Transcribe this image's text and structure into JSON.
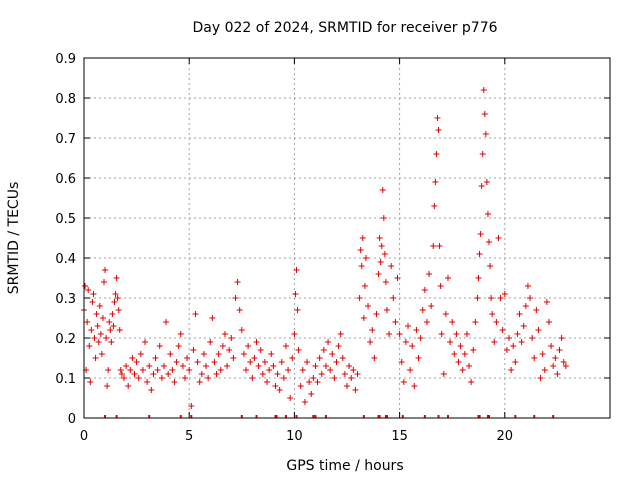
{
  "chart_data": {
    "type": "scatter",
    "title": "Day 022 of 2024, SRMTID for receiver p776",
    "xlabel": "GPS time / hours",
    "ylabel": "SRMTID / TECUs",
    "xlim": [
      0,
      25
    ],
    "ylim": [
      0,
      0.9
    ],
    "xticks": [
      0,
      5,
      10,
      15,
      20
    ],
    "xtick_labels": [
      "0",
      "5",
      "10",
      "15",
      "20"
    ],
    "yticks": [
      0,
      0.1,
      0.2,
      0.3,
      0.4,
      0.5,
      0.6,
      0.7,
      0.8,
      0.9
    ],
    "ytick_labels": [
      "0",
      "0.1",
      "0.2",
      "0.3",
      "0.4",
      "0.5",
      "0.6",
      "0.7",
      "0.8",
      "0.9"
    ],
    "grid": true,
    "marker": "+",
    "color": "#e00000",
    "series": [
      {
        "name": "SRMTID",
        "points": [
          [
            0.0,
            0.27
          ],
          [
            0.05,
            0.33
          ],
          [
            0.1,
            0.12
          ],
          [
            0.15,
            0.24
          ],
          [
            0.2,
            0.32
          ],
          [
            0.25,
            0.18
          ],
          [
            0.3,
            0.09
          ],
          [
            0.35,
            0.22
          ],
          [
            0.4,
            0.29
          ],
          [
            0.45,
            0.31
          ],
          [
            0.5,
            0.2
          ],
          [
            0.55,
            0.15
          ],
          [
            0.6,
            0.26
          ],
          [
            0.65,
            0.23
          ],
          [
            0.7,
            0.19
          ],
          [
            0.75,
            0.28
          ],
          [
            0.8,
            0.21
          ],
          [
            0.85,
            0.16
          ],
          [
            0.9,
            0.25
          ],
          [
            0.95,
            0.34
          ],
          [
            1.0,
            0.37
          ],
          [
            1.05,
            0.2
          ],
          [
            1.1,
            0.08
          ],
          [
            1.15,
            0.12
          ],
          [
            1.2,
            0.24
          ],
          [
            1.25,
            0.22
          ],
          [
            1.3,
            0.19
          ],
          [
            1.35,
            0.26
          ],
          [
            1.4,
            0.23
          ],
          [
            1.45,
            0.29
          ],
          [
            1.5,
            0.31
          ],
          [
            1.55,
            0.35
          ],
          [
            1.6,
            0.3
          ],
          [
            1.65,
            0.27
          ],
          [
            1.7,
            0.22
          ],
          [
            1.75,
            0.12
          ],
          [
            1.8,
            0.11
          ],
          [
            1.9,
            0.1
          ],
          [
            2.0,
            0.13
          ],
          [
            2.1,
            0.08
          ],
          [
            2.2,
            0.12
          ],
          [
            2.3,
            0.15
          ],
          [
            2.4,
            0.11
          ],
          [
            2.5,
            0.14
          ],
          [
            2.6,
            0.1
          ],
          [
            2.7,
            0.16
          ],
          [
            2.8,
            0.12
          ],
          [
            2.9,
            0.19
          ],
          [
            3.0,
            0.09
          ],
          [
            3.1,
            0.13
          ],
          [
            3.2,
            0.07
          ],
          [
            3.3,
            0.11
          ],
          [
            3.4,
            0.15
          ],
          [
            3.5,
            0.12
          ],
          [
            3.6,
            0.18
          ],
          [
            3.7,
            0.1
          ],
          [
            3.8,
            0.13
          ],
          [
            3.9,
            0.24
          ],
          [
            4.0,
            0.11
          ],
          [
            4.1,
            0.16
          ],
          [
            4.2,
            0.12
          ],
          [
            4.3,
            0.09
          ],
          [
            4.4,
            0.14
          ],
          [
            4.5,
            0.18
          ],
          [
            4.6,
            0.21
          ],
          [
            4.7,
            0.13
          ],
          [
            4.8,
            0.1
          ],
          [
            4.9,
            0.15
          ],
          [
            5.0,
            0.12
          ],
          [
            5.1,
            0.03
          ],
          [
            5.2,
            0.17
          ],
          [
            5.3,
            0.26
          ],
          [
            5.4,
            0.14
          ],
          [
            5.5,
            0.09
          ],
          [
            5.6,
            0.11
          ],
          [
            5.7,
            0.16
          ],
          [
            5.8,
            0.13
          ],
          [
            5.9,
            0.1
          ],
          [
            6.0,
            0.19
          ],
          [
            6.1,
            0.25
          ],
          [
            6.2,
            0.14
          ],
          [
            6.3,
            0.11
          ],
          [
            6.4,
            0.16
          ],
          [
            6.5,
            0.12
          ],
          [
            6.6,
            0.18
          ],
          [
            6.7,
            0.21
          ],
          [
            6.8,
            0.13
          ],
          [
            6.9,
            0.17
          ],
          [
            7.0,
            0.2
          ],
          [
            7.1,
            0.15
          ],
          [
            7.2,
            0.3
          ],
          [
            7.3,
            0.34
          ],
          [
            7.4,
            0.27
          ],
          [
            7.5,
            0.22
          ],
          [
            7.6,
            0.16
          ],
          [
            7.7,
            0.12
          ],
          [
            7.8,
            0.18
          ],
          [
            7.9,
            0.14
          ],
          [
            8.0,
            0.1
          ],
          [
            8.1,
            0.15
          ],
          [
            8.2,
            0.19
          ],
          [
            8.3,
            0.13
          ],
          [
            8.4,
            0.17
          ],
          [
            8.5,
            0.11
          ],
          [
            8.6,
            0.14
          ],
          [
            8.7,
            0.09
          ],
          [
            8.8,
            0.12
          ],
          [
            8.9,
            0.16
          ],
          [
            9.0,
            0.13
          ],
          [
            9.1,
            0.08
          ],
          [
            9.2,
            0.11
          ],
          [
            9.3,
            0.07
          ],
          [
            9.4,
            0.14
          ],
          [
            9.5,
            0.1
          ],
          [
            9.6,
            0.18
          ],
          [
            9.7,
            0.12
          ],
          [
            9.8,
            0.05
          ],
          [
            9.9,
            0.15
          ],
          [
            10.0,
            0.21
          ],
          [
            10.05,
            0.31
          ],
          [
            10.1,
            0.37
          ],
          [
            10.15,
            0.27
          ],
          [
            10.2,
            0.17
          ],
          [
            10.3,
            0.08
          ],
          [
            10.4,
            0.12
          ],
          [
            10.5,
            0.04
          ],
          [
            10.6,
            0.14
          ],
          [
            10.7,
            0.09
          ],
          [
            10.8,
            0.06
          ],
          [
            10.9,
            0.1
          ],
          [
            11.0,
            0.13
          ],
          [
            11.1,
            0.09
          ],
          [
            11.2,
            0.15
          ],
          [
            11.3,
            0.11
          ],
          [
            11.4,
            0.17
          ],
          [
            11.5,
            0.13
          ],
          [
            11.6,
            0.19
          ],
          [
            11.7,
            0.12
          ],
          [
            11.8,
            0.16
          ],
          [
            11.9,
            0.1
          ],
          [
            12.0,
            0.14
          ],
          [
            12.1,
            0.18
          ],
          [
            12.2,
            0.21
          ],
          [
            12.3,
            0.15
          ],
          [
            12.4,
            0.11
          ],
          [
            12.5,
            0.08
          ],
          [
            12.6,
            0.13
          ],
          [
            12.7,
            0.1
          ],
          [
            12.8,
            0.12
          ],
          [
            12.9,
            0.07
          ],
          [
            13.0,
            0.11
          ],
          [
            13.1,
            0.3
          ],
          [
            13.15,
            0.42
          ],
          [
            13.2,
            0.38
          ],
          [
            13.25,
            0.45
          ],
          [
            13.3,
            0.25
          ],
          [
            13.35,
            0.33
          ],
          [
            13.4,
            0.4
          ],
          [
            13.5,
            0.28
          ],
          [
            13.6,
            0.19
          ],
          [
            13.7,
            0.22
          ],
          [
            13.8,
            0.15
          ],
          [
            13.9,
            0.26
          ],
          [
            14.0,
            0.36
          ],
          [
            14.05,
            0.45
          ],
          [
            14.1,
            0.39
          ],
          [
            14.15,
            0.43
          ],
          [
            14.2,
            0.57
          ],
          [
            14.25,
            0.5
          ],
          [
            14.3,
            0.41
          ],
          [
            14.35,
            0.34
          ],
          [
            14.4,
            0.27
          ],
          [
            14.5,
            0.21
          ],
          [
            14.6,
            0.38
          ],
          [
            14.7,
            0.3
          ],
          [
            14.8,
            0.24
          ],
          [
            14.9,
            0.35
          ],
          [
            15.0,
            0.21
          ],
          [
            15.1,
            0.14
          ],
          [
            15.2,
            0.09
          ],
          [
            15.3,
            0.19
          ],
          [
            15.4,
            0.23
          ],
          [
            15.5,
            0.12
          ],
          [
            15.6,
            0.18
          ],
          [
            15.7,
            0.08
          ],
          [
            15.8,
            0.22
          ],
          [
            15.9,
            0.15
          ],
          [
            16.0,
            0.2
          ],
          [
            16.1,
            0.27
          ],
          [
            16.2,
            0.32
          ],
          [
            16.3,
            0.24
          ],
          [
            16.4,
            0.36
          ],
          [
            16.5,
            0.28
          ],
          [
            16.6,
            0.43
          ],
          [
            16.65,
            0.53
          ],
          [
            16.7,
            0.59
          ],
          [
            16.75,
            0.66
          ],
          [
            16.8,
            0.75
          ],
          [
            16.85,
            0.72
          ],
          [
            16.9,
            0.43
          ],
          [
            16.95,
            0.33
          ],
          [
            17.0,
            0.21
          ],
          [
            17.1,
            0.11
          ],
          [
            17.2,
            0.26
          ],
          [
            17.3,
            0.35
          ],
          [
            17.4,
            0.19
          ],
          [
            17.5,
            0.24
          ],
          [
            17.6,
            0.16
          ],
          [
            17.7,
            0.21
          ],
          [
            17.8,
            0.14
          ],
          [
            17.9,
            0.18
          ],
          [
            18.0,
            0.12
          ],
          [
            18.1,
            0.16
          ],
          [
            18.2,
            0.21
          ],
          [
            18.3,
            0.13
          ],
          [
            18.4,
            0.09
          ],
          [
            18.5,
            0.17
          ],
          [
            18.6,
            0.24
          ],
          [
            18.7,
            0.3
          ],
          [
            18.75,
            0.35
          ],
          [
            18.8,
            0.41
          ],
          [
            18.85,
            0.46
          ],
          [
            18.9,
            0.58
          ],
          [
            18.95,
            0.66
          ],
          [
            19.0,
            0.82
          ],
          [
            19.05,
            0.76
          ],
          [
            19.1,
            0.71
          ],
          [
            19.15,
            0.59
          ],
          [
            19.2,
            0.51
          ],
          [
            19.25,
            0.44
          ],
          [
            19.3,
            0.38
          ],
          [
            19.35,
            0.3
          ],
          [
            19.4,
            0.26
          ],
          [
            19.5,
            0.19
          ],
          [
            19.6,
            0.24
          ],
          [
            19.7,
            0.45
          ],
          [
            19.8,
            0.3
          ],
          [
            19.9,
            0.22
          ],
          [
            20.0,
            0.31
          ],
          [
            20.1,
            0.17
          ],
          [
            20.2,
            0.2
          ],
          [
            20.3,
            0.12
          ],
          [
            20.4,
            0.18
          ],
          [
            20.5,
            0.14
          ],
          [
            20.6,
            0.21
          ],
          [
            20.7,
            0.26
          ],
          [
            20.8,
            0.19
          ],
          [
            20.9,
            0.23
          ],
          [
            21.0,
            0.28
          ],
          [
            21.1,
            0.33
          ],
          [
            21.2,
            0.3
          ],
          [
            21.3,
            0.2
          ],
          [
            21.4,
            0.15
          ],
          [
            21.5,
            0.27
          ],
          [
            21.6,
            0.22
          ],
          [
            21.7,
            0.1
          ],
          [
            21.8,
            0.16
          ],
          [
            21.9,
            0.12
          ],
          [
            22.0,
            0.29
          ],
          [
            22.1,
            0.24
          ],
          [
            22.2,
            0.18
          ],
          [
            22.3,
            0.13
          ],
          [
            22.4,
            0.15
          ],
          [
            22.5,
            0.11
          ],
          [
            22.6,
            0.17
          ],
          [
            22.7,
            0.2
          ],
          [
            22.8,
            0.14
          ],
          [
            22.9,
            0.13
          ]
        ]
      }
    ],
    "rug_x": [
      1.0,
      1.55,
      3.1,
      4.6,
      5.1,
      7.5,
      8.2,
      9.1,
      9.15,
      9.6,
      10.1,
      10.9,
      11.0,
      11.5,
      13.3,
      14.0,
      14.05,
      14.35,
      14.4,
      15.15,
      16.2,
      16.85,
      17.3,
      18.75,
      18.8,
      19.2,
      19.25,
      20.5,
      21.4,
      22.3
    ]
  }
}
